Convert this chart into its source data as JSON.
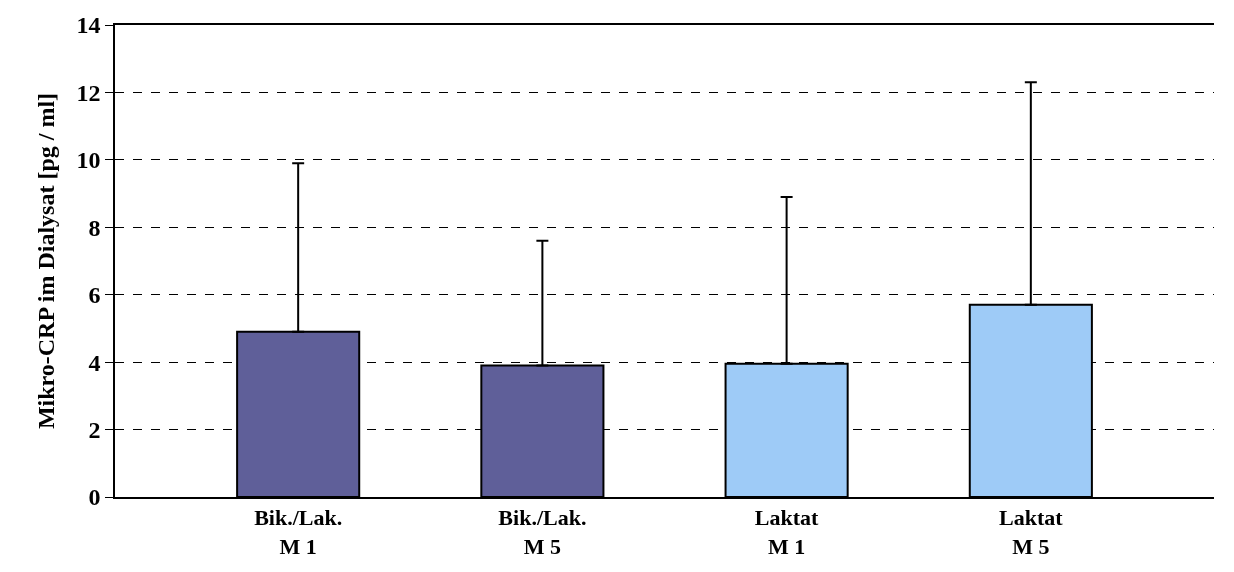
{
  "chart_data": {
    "type": "bar",
    "ylabel": "Mikro-CRP im Dialysat [pg / ml]",
    "categories": [
      "Bik./Lak.\nM 1",
      "Bik./Lak.\nM 5",
      "Laktat\nM 1",
      "Laktat\nM 5"
    ],
    "values": [
      4.9,
      3.9,
      3.95,
      5.7
    ],
    "colors": [
      "#5f5f99",
      "#5f5f99",
      "#9ecbf7",
      "#9ecbf7"
    ],
    "errors": [
      [
        4.9,
        9.9
      ],
      [
        3.9,
        7.6
      ],
      [
        3.95,
        8.9
      ],
      [
        5.7,
        12.3
      ]
    ],
    "ylim": [
      0,
      14
    ],
    "yticks": [
      0,
      2,
      4,
      6,
      8,
      10,
      12,
      14
    ],
    "grid": "y"
  }
}
